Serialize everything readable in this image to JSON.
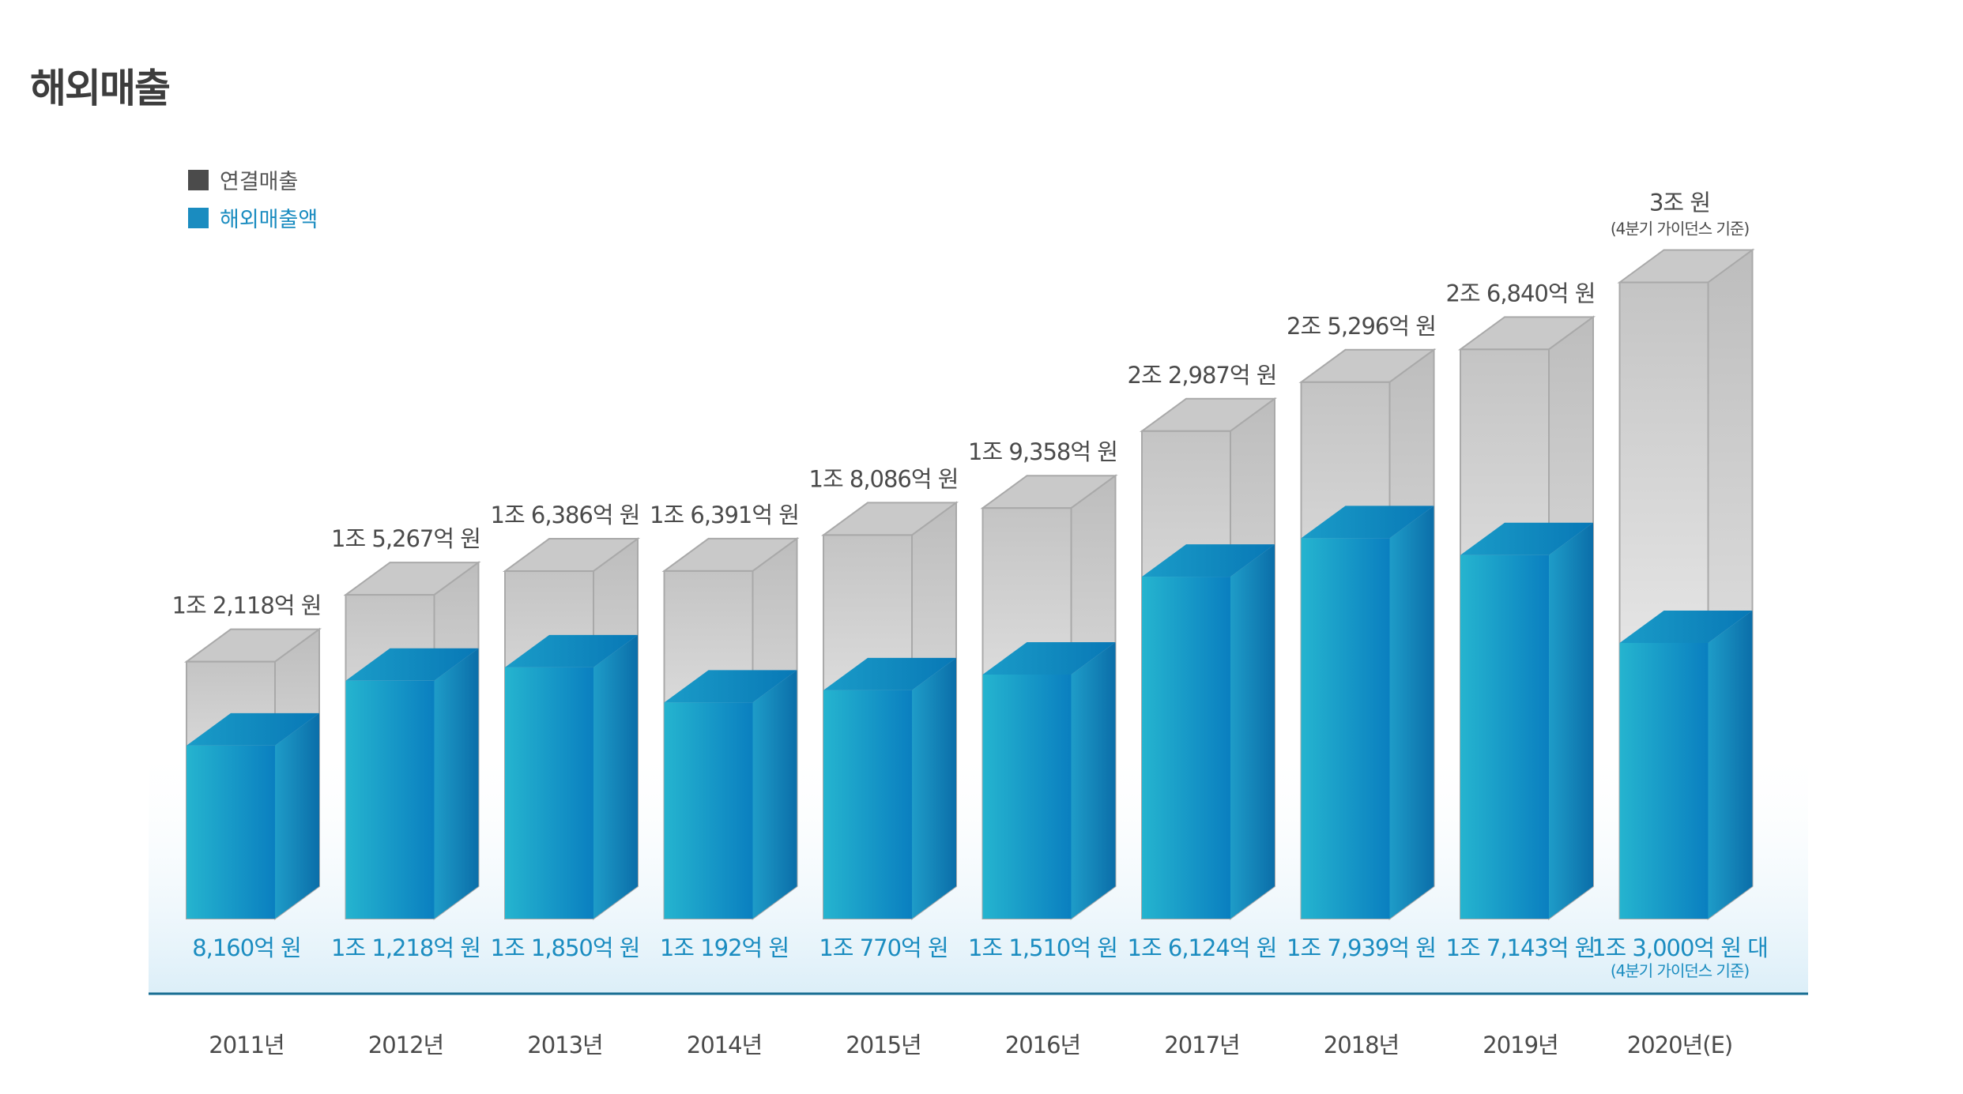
{
  "page_title": "해외매출",
  "colors": {
    "total": "#4b4b4b",
    "overseas": "#1a8cc0",
    "axis": "#1b6f93",
    "text": "#4a4a4a"
  },
  "chart_data": {
    "type": "bar",
    "title": "해외매출",
    "xlabel": "",
    "ylabel": "",
    "ylim": [
      0,
      31500
    ],
    "categories": [
      "2011년",
      "2012년",
      "2013년",
      "2014년",
      "2015년",
      "2016년",
      "2017년",
      "2018년",
      "2019년",
      "2020년(E)"
    ],
    "series": [
      {
        "name": "연결매출",
        "values": [
          12118,
          15267,
          16386,
          16391,
          18086,
          19358,
          22987,
          25296,
          26840,
          30000
        ],
        "labels": [
          "1조 2,118억 원",
          "1조 5,267억 원",
          "1조 6,386억 원",
          "1조 6,391억 원",
          "1조 8,086억 원",
          "1조 9,358억 원",
          "2조 2,987억 원",
          "2조 5,296억 원",
          "2조 6,840억 원",
          "3조 원"
        ],
        "notes": [
          "",
          "",
          "",
          "",
          "",
          "",
          "",
          "",
          "",
          "(4분기 가이던스 기준)"
        ]
      },
      {
        "name": "해외매출액",
        "values": [
          8160,
          11218,
          11850,
          10192,
          10770,
          11510,
          16124,
          17939,
          17143,
          13000
        ],
        "labels": [
          "8,160억 원",
          "1조 1,218억 원",
          "1조 1,850억 원",
          "1조 192억 원",
          "1조 770억 원",
          "1조 1,510억 원",
          "1조 6,124억 원",
          "1조 7,939억 원",
          "1조 7,143억 원",
          "1조 3,000억 원 대"
        ],
        "notes": [
          "",
          "",
          "",
          "",
          "",
          "",
          "",
          "",
          "",
          "(4분기 가이던스 기준)"
        ]
      }
    ],
    "legend": {
      "position": "top-left",
      "entries": [
        "연결매출",
        "해외매출액"
      ]
    }
  }
}
